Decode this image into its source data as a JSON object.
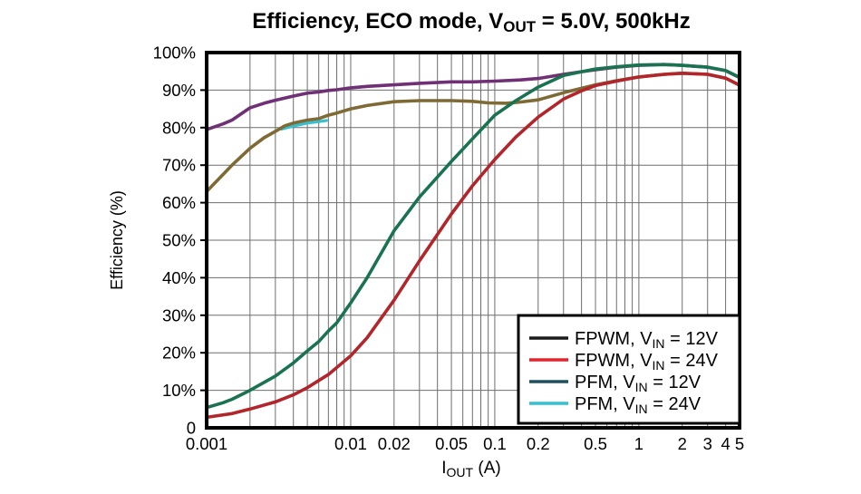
{
  "chart_data": {
    "type": "line",
    "title_segments": [
      {
        "t": "Efficiency, ECO mode, V"
      },
      {
        "t": "OUT",
        "sub": true
      },
      {
        "t": " = 5.0V, 500kHz"
      }
    ],
    "xlabel_segments": [
      {
        "t": "I"
      },
      {
        "t": "OUT",
        "sub": true
      },
      {
        "t": " (A)"
      }
    ],
    "ylabel": "Efficiency (%)",
    "x_scale": "log",
    "xlim": [
      0.001,
      5
    ],
    "ylim": [
      0,
      100
    ],
    "grid": {
      "horizontal_step": 10,
      "vertical_minor_log": true,
      "color": "#6e6e6e"
    },
    "x_ticks": [
      {
        "v": 0.001,
        "label": "0.001"
      },
      {
        "v": 0.01,
        "label": "0.01"
      },
      {
        "v": 0.02,
        "label": "0.02"
      },
      {
        "v": 0.05,
        "label": "0.05"
      },
      {
        "v": 0.1,
        "label": "0.1"
      },
      {
        "v": 0.2,
        "label": "0.2"
      },
      {
        "v": 0.5,
        "label": "0.5"
      },
      {
        "v": 1,
        "label": "1"
      },
      {
        "v": 2,
        "label": "2"
      },
      {
        "v": 3,
        "label": "3"
      },
      {
        "v": 4,
        "label": "4"
      },
      {
        "v": 5,
        "label": "5"
      }
    ],
    "y_ticks": [
      {
        "v": 100,
        "label": "100%"
      },
      {
        "v": 90,
        "label": "90%"
      },
      {
        "v": 80,
        "label": "80%"
      },
      {
        "v": 70,
        "label": "70%"
      },
      {
        "v": 60,
        "label": "60%"
      },
      {
        "v": 50,
        "label": "50%"
      },
      {
        "v": 40,
        "label": "40%"
      },
      {
        "v": 30,
        "label": "30%"
      },
      {
        "v": 20,
        "label": "20%"
      },
      {
        "v": 10,
        "label": "10%"
      },
      {
        "v": 0,
        "label": "0"
      }
    ],
    "series": [
      {
        "id": "pfm-24v-cyan-sliver",
        "note": "short visible segment of cyan curve peeking below the dark curve",
        "color": "#35c0d0",
        "width": 3.2,
        "points": [
          [
            0.0033,
            79.6
          ],
          [
            0.004,
            80.4
          ],
          [
            0.005,
            81.2
          ],
          [
            0.006,
            81.6
          ],
          [
            0.0068,
            81.9
          ]
        ]
      },
      {
        "id": "pfm-vin-24v",
        "color": "#7d6a35",
        "width": 3.6,
        "points": [
          [
            0.001,
            63
          ],
          [
            0.0013,
            67.5
          ],
          [
            0.0015,
            70
          ],
          [
            0.002,
            74.5
          ],
          [
            0.0025,
            77.3
          ],
          [
            0.003,
            79
          ],
          [
            0.0035,
            80.5
          ],
          [
            0.004,
            81.2
          ],
          [
            0.005,
            82
          ],
          [
            0.006,
            82.4
          ],
          [
            0.007,
            83.3
          ],
          [
            0.008,
            83.9
          ],
          [
            0.01,
            85
          ],
          [
            0.013,
            85.9
          ],
          [
            0.02,
            86.9
          ],
          [
            0.03,
            87.2
          ],
          [
            0.05,
            87.2
          ],
          [
            0.07,
            87
          ],
          [
            0.09,
            86.6
          ],
          [
            0.12,
            86.5
          ],
          [
            0.15,
            86.8
          ],
          [
            0.2,
            87.4
          ],
          [
            0.3,
            89.3
          ],
          [
            0.5,
            91.4
          ],
          [
            0.7,
            92.5
          ],
          [
            1,
            93.5
          ],
          [
            1.5,
            94.2
          ],
          [
            2,
            94.5
          ],
          [
            3,
            94.2
          ],
          [
            4,
            93.2
          ],
          [
            5,
            91.3
          ]
        ]
      },
      {
        "id": "pfm-vin-12v",
        "color": "#703075",
        "width": 3.6,
        "points": [
          [
            0.001,
            79.5
          ],
          [
            0.0013,
            81
          ],
          [
            0.0015,
            82
          ],
          [
            0.002,
            85.3
          ],
          [
            0.0025,
            86.5
          ],
          [
            0.003,
            87.3
          ],
          [
            0.004,
            88.4
          ],
          [
            0.005,
            89.2
          ],
          [
            0.006,
            89.5
          ],
          [
            0.007,
            89.9
          ],
          [
            0.008,
            90.1
          ],
          [
            0.01,
            90.6
          ],
          [
            0.013,
            91
          ],
          [
            0.02,
            91.4
          ],
          [
            0.03,
            91.8
          ],
          [
            0.05,
            92.2
          ],
          [
            0.07,
            92.2
          ],
          [
            0.1,
            92.4
          ],
          [
            0.15,
            92.7
          ],
          [
            0.2,
            93.1
          ],
          [
            0.3,
            94.2
          ],
          [
            0.4,
            94.9
          ],
          [
            0.5,
            95.4
          ],
          [
            0.7,
            96.1
          ],
          [
            1,
            96.6
          ],
          [
            1.5,
            96.8
          ],
          [
            2,
            96.6
          ],
          [
            3,
            96.1
          ],
          [
            4,
            95.2
          ],
          [
            5,
            93.3
          ]
        ]
      },
      {
        "id": "fpwm-vin-24v",
        "color": "#b2262b",
        "width": 3.6,
        "points": [
          [
            0.001,
            2.8
          ],
          [
            0.0015,
            3.8
          ],
          [
            0.002,
            5
          ],
          [
            0.003,
            6.9
          ],
          [
            0.004,
            8.8
          ],
          [
            0.005,
            10.7
          ],
          [
            0.007,
            14.2
          ],
          [
            0.01,
            19.2
          ],
          [
            0.013,
            24
          ],
          [
            0.02,
            34
          ],
          [
            0.03,
            44.5
          ],
          [
            0.05,
            57
          ],
          [
            0.07,
            64.5
          ],
          [
            0.1,
            71.5
          ],
          [
            0.14,
            77.5
          ],
          [
            0.2,
            82.8
          ],
          [
            0.3,
            87.6
          ],
          [
            0.4,
            89.8
          ],
          [
            0.5,
            91.2
          ],
          [
            0.7,
            92.4
          ],
          [
            1,
            93.5
          ],
          [
            1.5,
            94.2
          ],
          [
            2,
            94.5
          ],
          [
            3,
            94.2
          ],
          [
            4,
            93.2
          ],
          [
            5,
            91.3
          ]
        ]
      },
      {
        "id": "fpwm-vin-12v",
        "color": "#1a7350",
        "width": 3.6,
        "points": [
          [
            0.001,
            5.4
          ],
          [
            0.0013,
            6.7
          ],
          [
            0.0015,
            7.6
          ],
          [
            0.002,
            10
          ],
          [
            0.003,
            13.8
          ],
          [
            0.004,
            17.3
          ],
          [
            0.005,
            20.5
          ],
          [
            0.006,
            23
          ],
          [
            0.007,
            25.8
          ],
          [
            0.008,
            28
          ],
          [
            0.01,
            33.3
          ],
          [
            0.013,
            40
          ],
          [
            0.02,
            52.5
          ],
          [
            0.03,
            61.5
          ],
          [
            0.05,
            71
          ],
          [
            0.07,
            77
          ],
          [
            0.1,
            83.3
          ],
          [
            0.14,
            87.2
          ],
          [
            0.2,
            90.8
          ],
          [
            0.3,
            93.9
          ],
          [
            0.4,
            94.9
          ],
          [
            0.5,
            95.6
          ],
          [
            0.7,
            96.2
          ],
          [
            1,
            96.7
          ],
          [
            1.5,
            96.8
          ],
          [
            2,
            96.6
          ],
          [
            3,
            96.1
          ],
          [
            4,
            95.2
          ],
          [
            5,
            93.4
          ]
        ]
      }
    ],
    "legend": {
      "position": "bottom-right",
      "entries": [
        {
          "id": "fpwm-vin-12v",
          "color": "#1a1a1a",
          "segments": [
            {
              "t": "FPWM, V"
            },
            {
              "t": "IN",
              "sub": true
            },
            {
              "t": " = 12V"
            }
          ]
        },
        {
          "id": "fpwm-vin-24v",
          "color": "#ec2028",
          "segments": [
            {
              "t": "FPWM, V"
            },
            {
              "t": "IN",
              "sub": true
            },
            {
              "t": " = 24V"
            }
          ]
        },
        {
          "id": "pfm-vin-12v",
          "color": "#1f5060",
          "segments": [
            {
              "t": "PFM, V"
            },
            {
              "t": "IN",
              "sub": true
            },
            {
              "t": " = 12V"
            }
          ]
        },
        {
          "id": "pfm-vin-24v",
          "color": "#35c0d0",
          "segments": [
            {
              "t": "PFM, V"
            },
            {
              "t": "IN",
              "sub": true
            },
            {
              "t": " = 24V"
            }
          ]
        }
      ]
    },
    "colors": {
      "axis_border": "#000000",
      "grid": "#6e6e6e",
      "background": "#ffffff",
      "text": "#000000"
    }
  }
}
